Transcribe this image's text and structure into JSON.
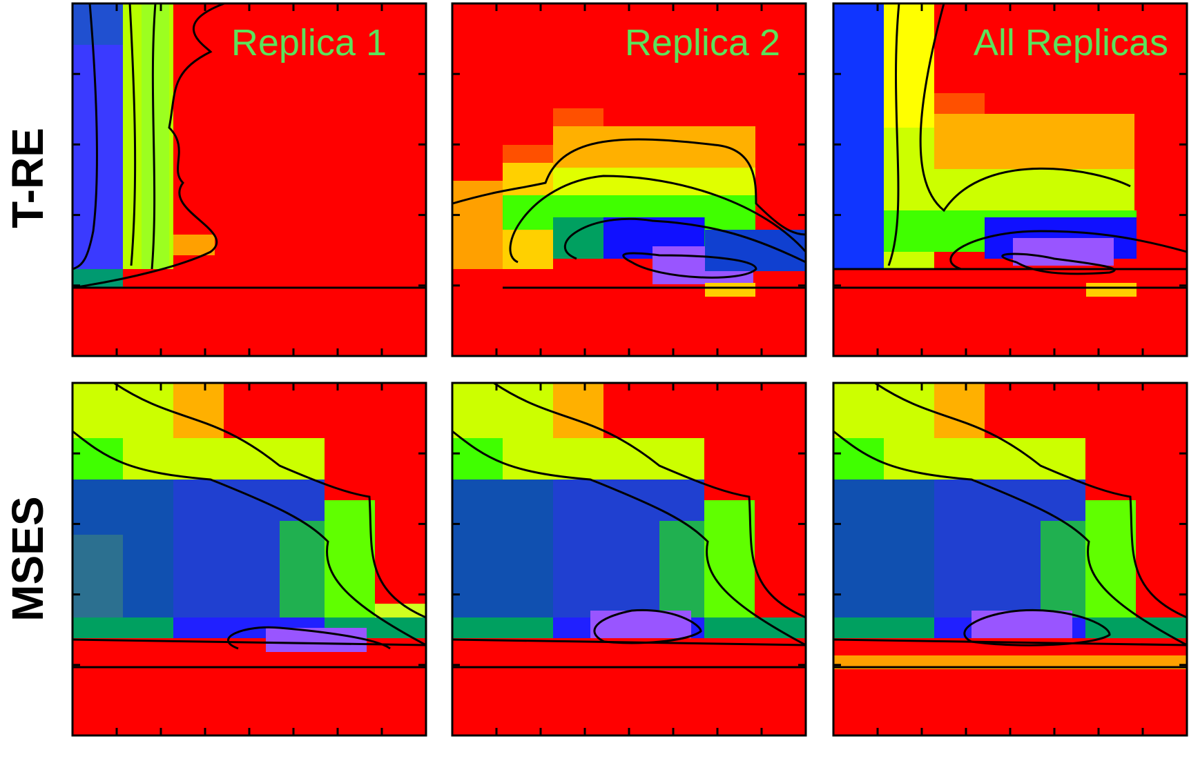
{
  "colors": {
    "background": "#ff0000",
    "title": "#5be35b",
    "contour": "#000000",
    "frame": "#000000"
  },
  "chart_data": {
    "type": "heatmap",
    "rows": [
      "T-RE",
      "MSES"
    ],
    "columns": [
      "Replica 1",
      "Replica 2",
      "All Replicas"
    ],
    "xlabel": "",
    "ylabel": "",
    "grid": false,
    "n_x_ticks": 7,
    "n_y_ticks": 4,
    "panels": [
      {
        "row": "T-RE",
        "title": "Replica 1"
      },
      {
        "row": "T-RE",
        "title": "Replica 2"
      },
      {
        "row": "T-RE",
        "title": "All Replicas"
      },
      {
        "row": "MSES",
        "title": ""
      },
      {
        "row": "MSES",
        "title": ""
      },
      {
        "row": "MSES",
        "title": ""
      }
    ]
  }
}
